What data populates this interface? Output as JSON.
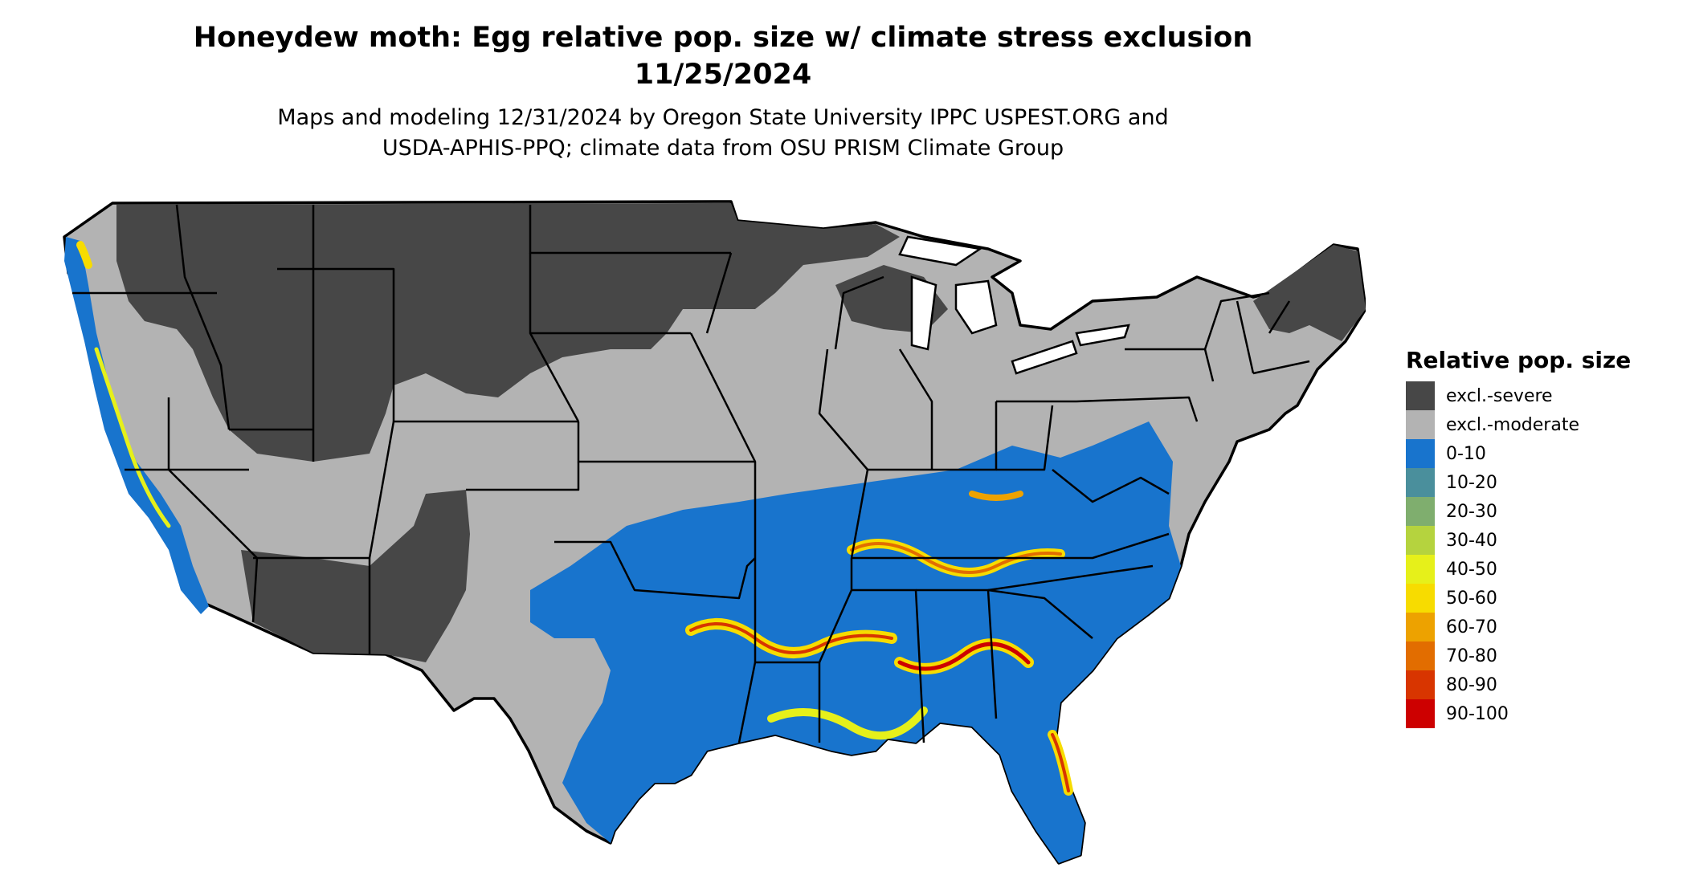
{
  "title": {
    "line1": "Honeydew moth: Egg relative pop. size w/ climate stress exclusion",
    "line2": "11/25/2024"
  },
  "subtitle": {
    "line1": "Maps and modeling 12/31/2024 by Oregon State University IPPC USPEST.ORG and",
    "line2": "USDA-APHIS-PPQ; climate data from OSU PRISM Climate Group"
  },
  "legend": {
    "title": "Relative pop. size",
    "items": [
      {
        "label": "excl.-severe",
        "color": "#474747"
      },
      {
        "label": "excl.-moderate",
        "color": "#b3b3b3"
      },
      {
        "label": "0-10",
        "color": "#1874cd"
      },
      {
        "label": "10-20",
        "color": "#4a8f9c"
      },
      {
        "label": "20-30",
        "color": "#7fae6e"
      },
      {
        "label": "30-40",
        "color": "#b5d33e"
      },
      {
        "label": "40-50",
        "color": "#e6f01a"
      },
      {
        "label": "50-60",
        "color": "#f7dc00"
      },
      {
        "label": "60-70",
        "color": "#eda200"
      },
      {
        "label": "70-80",
        "color": "#e26d00"
      },
      {
        "label": "80-90",
        "color": "#d83500"
      },
      {
        "label": "90-100",
        "color": "#cd0000"
      }
    ]
  }
}
